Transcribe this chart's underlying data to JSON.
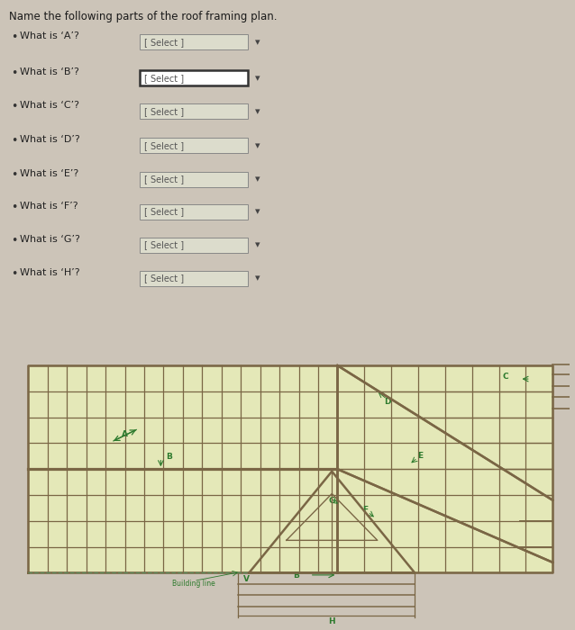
{
  "page_bg": "#ccc4b8",
  "diagram_bg": "#e8e8c0",
  "title": "Name the following parts of the roof framing plan.",
  "questions": [
    "What is ‘A’?  [ Select ]",
    "What is ‘B’?  [ Select ]",
    "What is ‘C’?  [ Select ]",
    "What is ‘D’?  [ Select ]",
    "What is ‘E’?  [ Select ]",
    "What is ‘F’?  [ Select ]",
    "What is ‘G’?  [ Select ]",
    "What is ‘H’?  [ Select ]"
  ],
  "q_labels": [
    "A",
    "B",
    "C",
    "D",
    "E",
    "F",
    "G",
    "H"
  ],
  "select_text": "[ Select ]",
  "line_color": "#7a6645",
  "line_color2": "#6b5a3e",
  "label_color": "#2d7a2d",
  "dashed_color": "#5a8a5a",
  "box_border_normal": "#888888",
  "box_border_B": "#333333",
  "box_fill_normal": "#dcdccc",
  "box_fill_B": "#ffffff"
}
